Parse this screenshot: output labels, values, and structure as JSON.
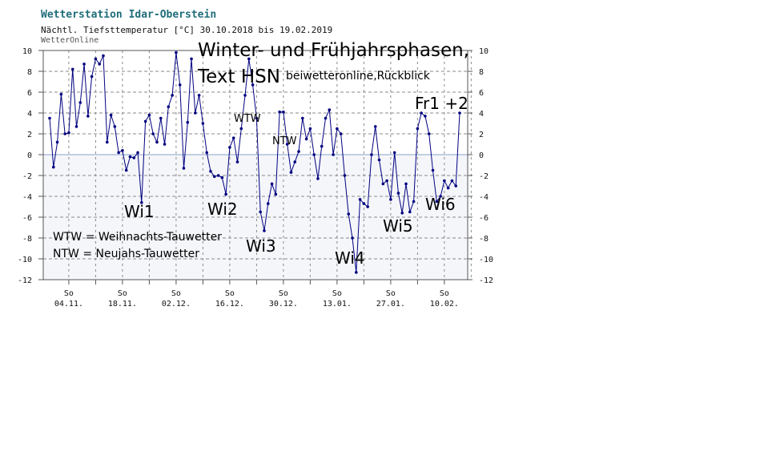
{
  "header": {
    "station": "Wetterstation Idar-Oberstein",
    "subtitle": "Nächtl. Tiefsttemperatur [°C] 30.10.2018 bis 19.02.2019",
    "brand": "WetterOnline"
  },
  "annotations": {
    "title_line1": "Winter- und Frühjahrsphasen,",
    "title_line2": "Text HSN",
    "source": "beiwetteronline,Rückblick",
    "wtw": "WTW",
    "ntw": "NTW",
    "fr1": "Fr1 +2",
    "wi1": "Wi1",
    "wi2": "Wi2",
    "wi3": "Wi3",
    "wi4": "Wi4",
    "wi5": "Wi5",
    "wi6": "Wi6",
    "legend_wtw": "WTW = Weihnachts-Tauwetter",
    "legend_ntw": "NTW = Neujahs-Tauwetter"
  },
  "colors": {
    "line": "#000080",
    "station_title": "#1f6d7a",
    "plot_bg": "#f4f6fa",
    "grid": "#8a8a8a",
    "zero_line": "#8aa0c8"
  },
  "chart_data": {
    "type": "line",
    "title": "Nächtl. Tiefsttemperatur [°C] 30.10.2018 bis 19.02.2019",
    "xlabel": "",
    "ylabel": "",
    "ylim": [
      -12,
      10
    ],
    "yticks": [
      10,
      8,
      6,
      4,
      2,
      0,
      -2,
      -4,
      -6,
      -8,
      -10,
      -12
    ],
    "xtick_day": "So",
    "xtick_dates": [
      "04.11.",
      "18.11.",
      "02.12.",
      "16.12.",
      "30.12.",
      "13.01.",
      "27.01.",
      "10.02."
    ],
    "grid": true,
    "start_date": "30.10.2018",
    "series": [
      {
        "values": [
          3.5,
          -1.2,
          1.2,
          5.8,
          2,
          2.1,
          8.2,
          2.7,
          5,
          8.7,
          3.7,
          7.5,
          9.2,
          8.7,
          9.5,
          1.2,
          3.8,
          2.7,
          0.2,
          0.4,
          -1.5,
          -0.2,
          -0.3,
          0.2,
          -4.6,
          3.2,
          3.8,
          2,
          1.2,
          3.5,
          1,
          4.6,
          5.7,
          9.8,
          6.7,
          -1.3,
          3.1,
          9.2,
          4,
          5.7,
          3,
          0.2,
          -1.6,
          -2.1,
          -2,
          -2.2,
          -3.8,
          0.7,
          1.6,
          -0.7,
          2.5,
          5.7,
          9.2,
          6.7,
          3.5,
          -5.5,
          -7.3,
          -4.7,
          -2.8,
          -3.8,
          4.1,
          4.1,
          1,
          -1.7,
          -0.7,
          0.3,
          3.5,
          1.5,
          2.5,
          0,
          -2.3,
          0.8,
          3.5,
          4.3,
          0,
          2.5,
          2,
          -2,
          -5.7,
          -8,
          -11.3,
          -4.3,
          -4.7,
          -5,
          0,
          2.7,
          -0.5,
          -2.8,
          -2.5,
          -4.3,
          0.2,
          -3.7,
          -5.6,
          -2.8,
          -5.5,
          -4.5,
          2.5,
          4,
          3.7,
          2,
          -1.5,
          -4.5,
          -4,
          -2.5,
          -3.2,
          -2.5,
          -3,
          4
        ]
      }
    ]
  }
}
